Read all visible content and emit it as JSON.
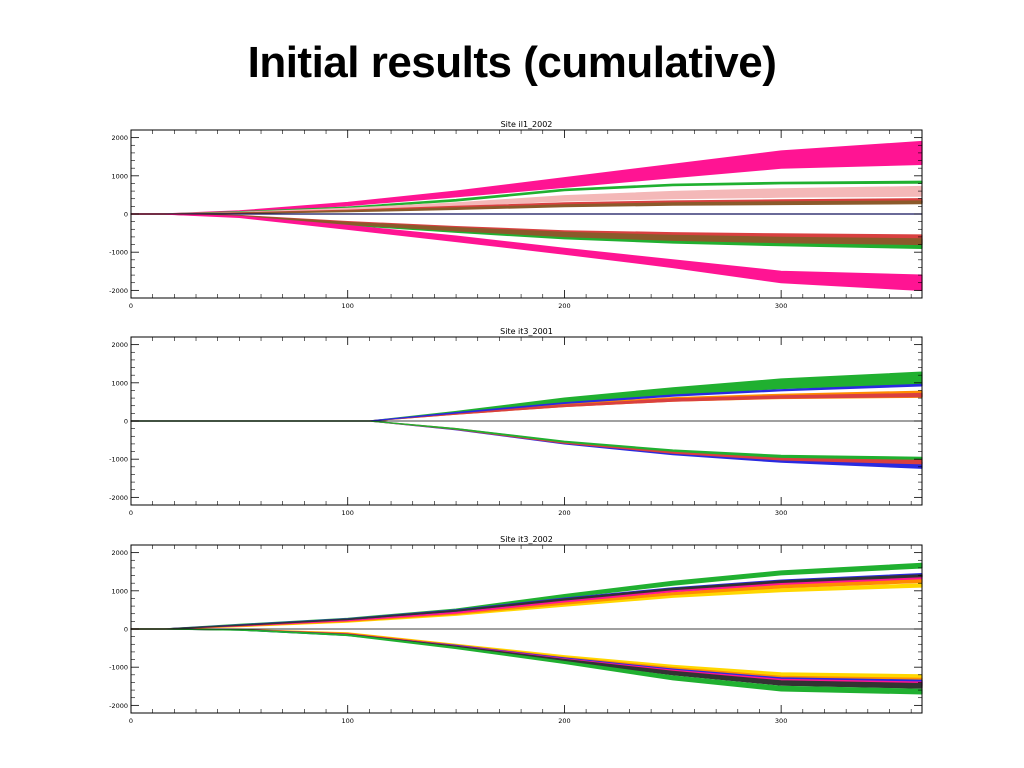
{
  "slide": {
    "title": "Initial results (cumulative)"
  },
  "chart_data": [
    {
      "type": "area",
      "title": "Site il1_2002",
      "xlim": [
        0,
        365
      ],
      "ylim": [
        -2200,
        2200
      ],
      "xticks": [
        0,
        100,
        200,
        300
      ],
      "yticks": [
        2000,
        1000,
        0,
        -1000,
        -2000
      ],
      "x": [
        0,
        15,
        50,
        100,
        150,
        200,
        250,
        300,
        365
      ],
      "series": [
        {
          "color": "#ff1493",
          "upper": [
            0,
            0,
            80,
            300,
            600,
            950,
            1300,
            1650,
            1900
          ],
          "lower": [
            0,
            0,
            50,
            220,
            450,
            700,
            950,
            1200,
            1300
          ]
        },
        {
          "color": "#20b030",
          "upper": [
            0,
            0,
            60,
            180,
            380,
            650,
            780,
            830,
            860
          ],
          "lower": [
            0,
            0,
            50,
            160,
            340,
            610,
            740,
            790,
            810
          ]
        },
        {
          "color": "#f4b8b8",
          "upper": [
            0,
            0,
            45,
            150,
            290,
            480,
            590,
            660,
            720
          ],
          "lower": [
            0,
            0,
            30,
            110,
            220,
            340,
            400,
            440,
            470
          ]
        },
        {
          "color": "#d94040",
          "upper": [
            0,
            0,
            30,
            100,
            200,
            290,
            340,
            370,
            400
          ],
          "lower": [
            0,
            0,
            20,
            70,
            150,
            220,
            260,
            280,
            300
          ]
        },
        {
          "color": "#8b5a2b",
          "upper": [
            0,
            0,
            25,
            80,
            160,
            240,
            290,
            320,
            340
          ],
          "lower": [
            0,
            0,
            15,
            60,
            120,
            190,
            230,
            250,
            270
          ]
        },
        {
          "color": "#2a2ae0",
          "upper": [
            0,
            0,
            0,
            0,
            0,
            0,
            0,
            0,
            0
          ],
          "lower": [
            0,
            0,
            0,
            0,
            0,
            0,
            0,
            0,
            0
          ]
        },
        {
          "color": "#d94040",
          "upper": [
            0,
            0,
            -40,
            -200,
            -330,
            -440,
            -490,
            -520,
            -550
          ],
          "lower": [
            0,
            0,
            -60,
            -260,
            -420,
            -560,
            -650,
            -700,
            -760
          ]
        },
        {
          "color": "#20b030",
          "upper": [
            0,
            0,
            -50,
            -240,
            -400,
            -540,
            -640,
            -700,
            -760
          ],
          "lower": [
            0,
            0,
            -70,
            -290,
            -480,
            -650,
            -760,
            -830,
            -900
          ]
        },
        {
          "color": "#8b5a2b",
          "upper": [
            0,
            0,
            -45,
            -220,
            -360,
            -480,
            -560,
            -610,
            -650
          ],
          "lower": [
            0,
            0,
            -60,
            -270,
            -440,
            -590,
            -690,
            -750,
            -800
          ]
        },
        {
          "color": "#ff1493",
          "upper": [
            0,
            0,
            -60,
            -300,
            -580,
            -900,
            -1200,
            -1500,
            -1600
          ],
          "lower": [
            0,
            0,
            -90,
            -400,
            -720,
            -1050,
            -1400,
            -1800,
            -2000
          ]
        }
      ]
    },
    {
      "type": "area",
      "title": "Site it3_2001",
      "xlim": [
        0,
        365
      ],
      "ylim": [
        -2200,
        2200
      ],
      "xticks": [
        0,
        100,
        200,
        300
      ],
      "yticks": [
        2000,
        1000,
        0,
        -1000,
        -2000
      ],
      "x": [
        0,
        50,
        100,
        110,
        150,
        200,
        250,
        300,
        365
      ],
      "series": [
        {
          "color": "#20b030",
          "upper": [
            0,
            0,
            0,
            0,
            250,
            600,
            870,
            1100,
            1280
          ],
          "lower": [
            0,
            0,
            0,
            0,
            200,
            470,
            680,
            850,
            970
          ]
        },
        {
          "color": "#ff8c00",
          "upper": [
            0,
            0,
            0,
            0,
            210,
            450,
            610,
            700,
            780
          ],
          "lower": [
            0,
            0,
            0,
            0,
            180,
            380,
            520,
            590,
            620
          ]
        },
        {
          "color": "#d94040",
          "upper": [
            0,
            0,
            0,
            0,
            200,
            420,
            580,
            660,
            720
          ],
          "lower": [
            0,
            0,
            0,
            0,
            180,
            380,
            520,
            600,
            640
          ]
        },
        {
          "color": "#2a2ae0",
          "upper": [
            0,
            0,
            0,
            0,
            220,
            480,
            680,
            820,
            960
          ],
          "lower": [
            0,
            0,
            0,
            0,
            210,
            460,
            650,
            790,
            920
          ]
        },
        {
          "color": "#2a2ae0",
          "upper": [
            0,
            0,
            0,
            0,
            -210,
            -560,
            -800,
            -960,
            -1080
          ],
          "lower": [
            0,
            0,
            0,
            0,
            -230,
            -600,
            -880,
            -1080,
            -1240
          ]
        },
        {
          "color": "#d94040",
          "upper": [
            0,
            0,
            0,
            0,
            -200,
            -540,
            -780,
            -930,
            -1000
          ],
          "lower": [
            0,
            0,
            0,
            0,
            -220,
            -580,
            -840,
            -1020,
            -1120
          ]
        },
        {
          "color": "#20b030",
          "upper": [
            0,
            0,
            0,
            0,
            -200,
            -530,
            -760,
            -900,
            -950
          ],
          "lower": [
            0,
            0,
            0,
            0,
            -210,
            -550,
            -790,
            -950,
            -1000
          ]
        }
      ]
    },
    {
      "type": "area",
      "title": "Site it3_2002",
      "xlim": [
        0,
        365
      ],
      "ylim": [
        -2200,
        2200
      ],
      "xticks": [
        0,
        100,
        200,
        300
      ],
      "yticks": [
        2000,
        1000,
        0,
        -1000,
        -2000
      ],
      "x": [
        0,
        15,
        50,
        100,
        150,
        200,
        250,
        300,
        365
      ],
      "series": [
        {
          "color": "#20b030",
          "upper": [
            0,
            0,
            120,
            280,
            520,
            900,
            1250,
            1520,
            1720
          ],
          "lower": [
            0,
            0,
            110,
            260,
            480,
            820,
            1150,
            1420,
            1600
          ]
        },
        {
          "color": "#ffd700",
          "upper": [
            0,
            0,
            70,
            200,
            400,
            650,
            900,
            1050,
            1180
          ],
          "lower": [
            0,
            0,
            60,
            180,
            360,
            600,
            830,
            980,
            1100
          ]
        },
        {
          "color": "#ff8c00",
          "upper": [
            0,
            0,
            80,
            220,
            420,
            700,
            950,
            1150,
            1300
          ],
          "lower": [
            0,
            0,
            70,
            200,
            390,
            650,
            900,
            1080,
            1220
          ]
        },
        {
          "color": "#ff1493",
          "upper": [
            0,
            0,
            90,
            240,
            450,
            750,
            1020,
            1220,
            1380
          ],
          "lower": [
            0,
            0,
            80,
            220,
            420,
            710,
            980,
            1170,
            1320
          ]
        },
        {
          "color": "#2a2ae0",
          "upper": [
            0,
            0,
            110,
            270,
            500,
            810,
            1080,
            1280,
            1450
          ],
          "lower": [
            0,
            0,
            100,
            250,
            470,
            770,
            1040,
            1230,
            1380
          ]
        },
        {
          "color": "#333333",
          "upper": [
            0,
            0,
            100,
            260,
            490,
            790,
            1060,
            1260,
            1420
          ],
          "lower": [
            0,
            0,
            95,
            250,
            470,
            760,
            1030,
            1220,
            1370
          ]
        },
        {
          "color": "#ffd700",
          "upper": [
            0,
            0,
            -10,
            -100,
            -400,
            -700,
            -950,
            -1150,
            -1200
          ],
          "lower": [
            0,
            0,
            -20,
            -120,
            -430,
            -750,
            -1020,
            -1250,
            -1300
          ]
        },
        {
          "color": "#ff8c00",
          "upper": [
            0,
            0,
            -12,
            -110,
            -420,
            -740,
            -1010,
            -1240,
            -1290
          ],
          "lower": [
            0,
            0,
            -22,
            -130,
            -450,
            -790,
            -1090,
            -1340,
            -1400
          ]
        },
        {
          "color": "#2a2ae0",
          "upper": [
            0,
            0,
            -15,
            -150,
            -430,
            -760,
            -1050,
            -1280,
            -1340
          ],
          "lower": [
            0,
            0,
            -25,
            -170,
            -460,
            -810,
            -1120,
            -1380,
            -1440
          ]
        },
        {
          "color": "#ff1493",
          "upper": [
            0,
            0,
            -14,
            -130,
            -440,
            -780,
            -1080,
            -1320,
            -1390
          ],
          "lower": [
            0,
            0,
            -24,
            -150,
            -470,
            -830,
            -1160,
            -1420,
            -1500
          ]
        },
        {
          "color": "#333333",
          "upper": [
            0,
            0,
            -16,
            -140,
            -450,
            -800,
            -1110,
            -1360,
            -1430
          ],
          "lower": [
            0,
            0,
            -26,
            -160,
            -480,
            -850,
            -1200,
            -1470,
            -1550
          ]
        },
        {
          "color": "#20b030",
          "upper": [
            0,
            0,
            -18,
            -150,
            -480,
            -850,
            -1230,
            -1500,
            -1580
          ],
          "lower": [
            0,
            0,
            -28,
            -170,
            -510,
            -900,
            -1330,
            -1620,
            -1700
          ]
        }
      ]
    }
  ]
}
